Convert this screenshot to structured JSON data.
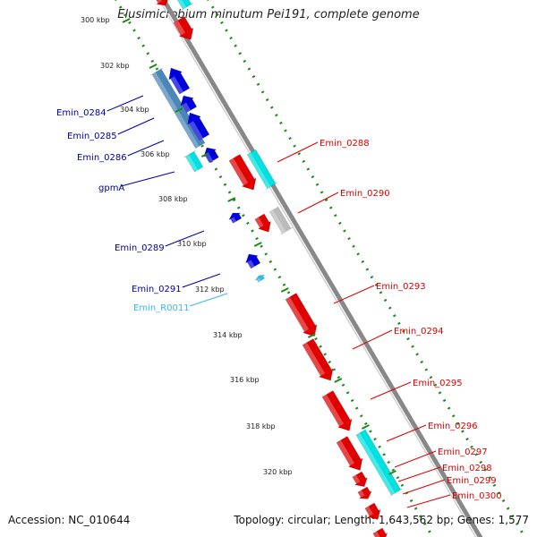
{
  "title": "Elusimicrobium minutum Pei191, complete genome",
  "footer": {
    "accession": "Accession: NC_010644",
    "summary": "Topology: circular; Length: 1,643,562 bp; Genes: 1,577"
  },
  "colors": {
    "forward_gene": "#e00000",
    "reverse_gene": "#0000dd",
    "rrna_trna": "#00e0e0",
    "steel_blue_gene": "#4a86b8",
    "pseudo_gene": "#bbbbbb",
    "backbone": "#888888",
    "tick_dots": "#1a8a1a"
  },
  "scale_ticks": [
    "300 kbp",
    "302 kbp",
    "304 kbp",
    "306 kbp",
    "308 kbp",
    "310 kbp",
    "312 kbp",
    "314 kbp",
    "316 kbp",
    "318 kbp",
    "320 kbp"
  ],
  "left_labels": [
    {
      "text": "Emin_0284",
      "color": "#0000a0"
    },
    {
      "text": "Emin_0285",
      "color": "#0000a0"
    },
    {
      "text": "Emin_0286",
      "color": "#0000a0"
    },
    {
      "text": "gpmA",
      "color": "#0000a0"
    },
    {
      "text": "Emin_0289",
      "color": "#0000a0"
    },
    {
      "text": "Emin_0291",
      "color": "#0000a0"
    },
    {
      "text": "Emin_R0011",
      "color": "#33bbee"
    }
  ],
  "right_labels": [
    {
      "text": "Emin_0288",
      "color": "#dd0000"
    },
    {
      "text": "Emin_0290",
      "color": "#dd0000"
    },
    {
      "text": "Emin_0293",
      "color": "#dd0000"
    },
    {
      "text": "Emin_0294",
      "color": "#dd0000"
    },
    {
      "text": "Emin_0295",
      "color": "#dd0000"
    },
    {
      "text": "Emin_0296",
      "color": "#dd0000"
    },
    {
      "text": "Emin_0297",
      "color": "#dd0000"
    },
    {
      "text": "Emin_0298",
      "color": "#dd0000"
    },
    {
      "text": "Emin_0299",
      "color": "#dd0000"
    },
    {
      "text": "Emin_0300",
      "color": "#dd0000"
    }
  ]
}
